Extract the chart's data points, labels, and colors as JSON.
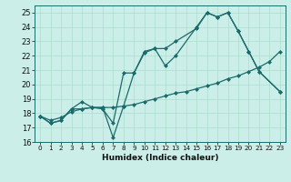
{
  "xlabel": "Humidex (Indice chaleur)",
  "bg_color": "#cceee8",
  "line_color": "#1a6b6b",
  "grid_color": "#aaddcc",
  "line1_x": [
    0,
    1,
    2,
    3,
    4,
    5,
    6,
    7,
    8,
    9,
    10,
    11,
    12,
    13,
    15,
    16,
    17,
    18,
    19,
    20,
    21,
    23
  ],
  "line1_y": [
    17.8,
    17.3,
    17.5,
    18.3,
    18.8,
    18.4,
    18.3,
    17.3,
    20.8,
    20.8,
    22.2,
    22.5,
    21.3,
    22.0,
    24.0,
    25.0,
    24.7,
    25.0,
    23.7,
    22.3,
    20.9,
    19.5
  ],
  "line2_x": [
    0,
    1,
    2,
    3,
    4,
    5,
    6,
    7,
    8,
    9,
    10,
    11,
    12,
    13,
    15,
    16,
    17,
    18,
    19,
    20,
    21,
    23
  ],
  "line2_y": [
    17.8,
    17.3,
    17.5,
    18.3,
    18.3,
    18.4,
    18.4,
    16.3,
    18.5,
    20.8,
    22.3,
    22.5,
    22.5,
    23.0,
    23.9,
    25.0,
    24.7,
    25.0,
    23.7,
    22.3,
    20.9,
    19.5
  ],
  "line3_x": [
    0,
    1,
    2,
    3,
    4,
    5,
    6,
    7,
    8,
    9,
    10,
    11,
    12,
    13,
    14,
    15,
    16,
    17,
    18,
    19,
    20,
    21,
    22,
    23
  ],
  "line3_y": [
    17.8,
    17.5,
    17.7,
    18.1,
    18.3,
    18.4,
    18.4,
    18.4,
    18.5,
    18.6,
    18.8,
    19.0,
    19.2,
    19.4,
    19.5,
    19.7,
    19.9,
    20.1,
    20.4,
    20.6,
    20.9,
    21.2,
    21.6,
    22.3
  ],
  "ylim": [
    16,
    25.5
  ],
  "xlim": [
    -0.5,
    23.5
  ],
  "yticks": [
    16,
    17,
    18,
    19,
    20,
    21,
    22,
    23,
    24,
    25
  ],
  "xticks": [
    0,
    1,
    2,
    3,
    4,
    5,
    6,
    7,
    8,
    9,
    10,
    11,
    12,
    13,
    14,
    15,
    16,
    17,
    18,
    19,
    20,
    21,
    22,
    23
  ]
}
